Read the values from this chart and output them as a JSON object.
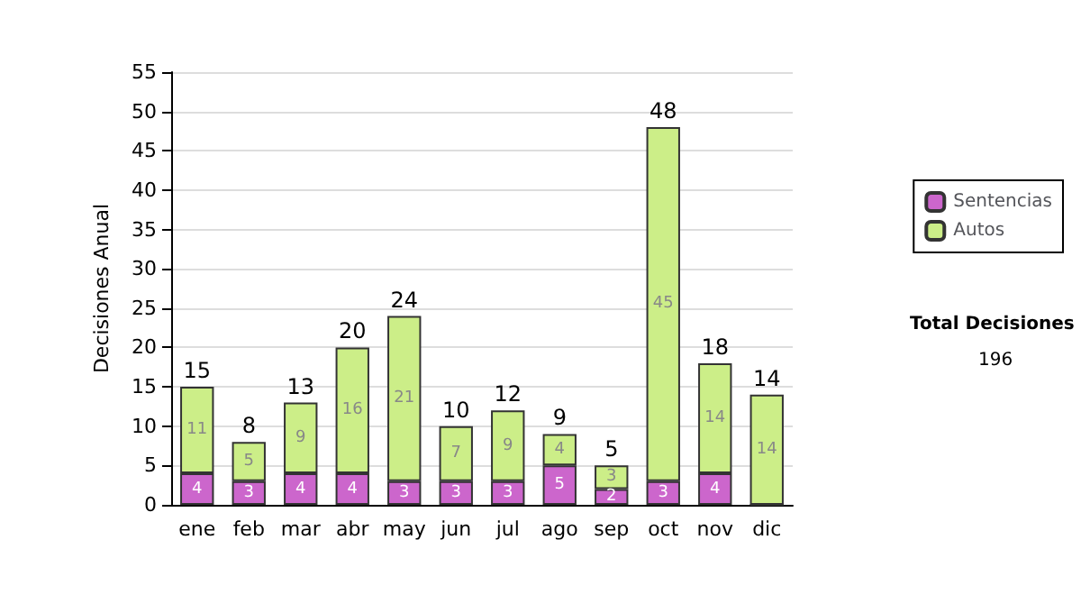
{
  "chart_data": {
    "type": "bar",
    "stacked": true,
    "ylabel": "Decisiones Anual",
    "categories": [
      "ene",
      "feb",
      "mar",
      "abr",
      "may",
      "jun",
      "jul",
      "ago",
      "sep",
      "oct",
      "nov",
      "dic"
    ],
    "series": [
      {
        "name": "Sentencias",
        "color": "#cc66cc",
        "values": [
          4,
          3,
          4,
          4,
          3,
          3,
          3,
          5,
          2,
          3,
          4,
          0
        ],
        "value_labels": [
          "4",
          "3",
          "4",
          "4",
          "3",
          "3",
          "3",
          "5",
          "2",
          "3",
          "4",
          null
        ]
      },
      {
        "name": "Autos",
        "color": "#ccee88",
        "values": [
          11,
          5,
          9,
          16,
          21,
          7,
          9,
          4,
          3,
          45,
          14,
          14
        ],
        "value_labels": [
          "11",
          "5",
          "9",
          "16",
          "21",
          "7",
          "9",
          "4",
          "3",
          "45",
          "14",
          "14"
        ]
      }
    ],
    "totals": [
      "15",
      "8",
      "13",
      "20",
      "24",
      "10",
      "12",
      "9",
      "5",
      "48",
      "18",
      "14"
    ],
    "ylim": [
      0,
      55
    ],
    "yticks": [
      0,
      5,
      10,
      15,
      20,
      25,
      30,
      35,
      40,
      45,
      50,
      55
    ],
    "grid": "y",
    "legend": "right",
    "annotations": [
      "Total Decisiones",
      "196"
    ]
  }
}
